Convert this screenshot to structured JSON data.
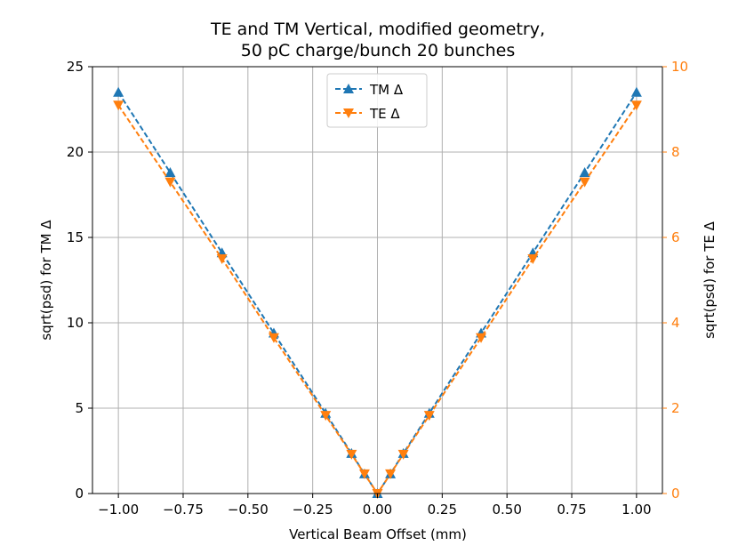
{
  "chart_data": {
    "type": "line",
    "title_lines": [
      "TE and TM Vertical, modified geometry,",
      "50 pC charge/bunch 20 bunches"
    ],
    "xlabel": "Vertical Beam Offset (mm)",
    "ylabel_left": "sqrt(psd) for TM Δ",
    "ylabel_right": "sqrt(psd) for TE Δ",
    "xlim": [
      -1.1,
      1.1
    ],
    "ylim_left": [
      0,
      25
    ],
    "ylim_right": [
      0,
      10
    ],
    "x_ticks": [
      -1.0,
      -0.75,
      -0.5,
      -0.25,
      0.0,
      0.25,
      0.5,
      0.75,
      1.0
    ],
    "x_tick_labels": [
      "−1.00",
      "−0.75",
      "−0.50",
      "−0.25",
      "0.00",
      "0.25",
      "0.50",
      "0.75",
      "1.00"
    ],
    "y_left_ticks": [
      0,
      5,
      10,
      15,
      20,
      25
    ],
    "y_left_tick_labels": [
      "0",
      "5",
      "10",
      "15",
      "20",
      "25"
    ],
    "y_right_ticks": [
      0,
      2,
      4,
      6,
      8,
      10
    ],
    "y_right_tick_labels": [
      "0",
      "2",
      "4",
      "6",
      "8",
      "10"
    ],
    "grid": true,
    "legend_position": "top-center",
    "series": [
      {
        "name": "TM Δ",
        "axis": "left",
        "color": "#1f77b4",
        "marker": "triangle-up",
        "x": [
          -1.0,
          -0.8,
          -0.6,
          -0.4,
          -0.2,
          -0.1,
          -0.05,
          0.0,
          0.05,
          0.1,
          0.2,
          0.4,
          0.6,
          0.8,
          1.0
        ],
        "y": [
          23.5,
          18.8,
          14.1,
          9.4,
          4.7,
          2.35,
          1.15,
          0.0,
          1.15,
          2.35,
          4.7,
          9.4,
          14.1,
          18.8,
          23.5
        ]
      },
      {
        "name": "TE Δ",
        "axis": "right",
        "color": "#ff7f0e",
        "marker": "triangle-down",
        "x": [
          -1.0,
          -0.8,
          -0.6,
          -0.4,
          -0.2,
          -0.1,
          -0.05,
          0.0,
          0.05,
          0.1,
          0.2,
          0.4,
          0.6,
          0.8,
          1.0
        ],
        "y": [
          9.1,
          7.3,
          5.5,
          3.65,
          1.83,
          0.92,
          0.46,
          0.0,
          0.46,
          0.92,
          1.83,
          3.65,
          5.5,
          7.3,
          9.1
        ]
      }
    ]
  }
}
